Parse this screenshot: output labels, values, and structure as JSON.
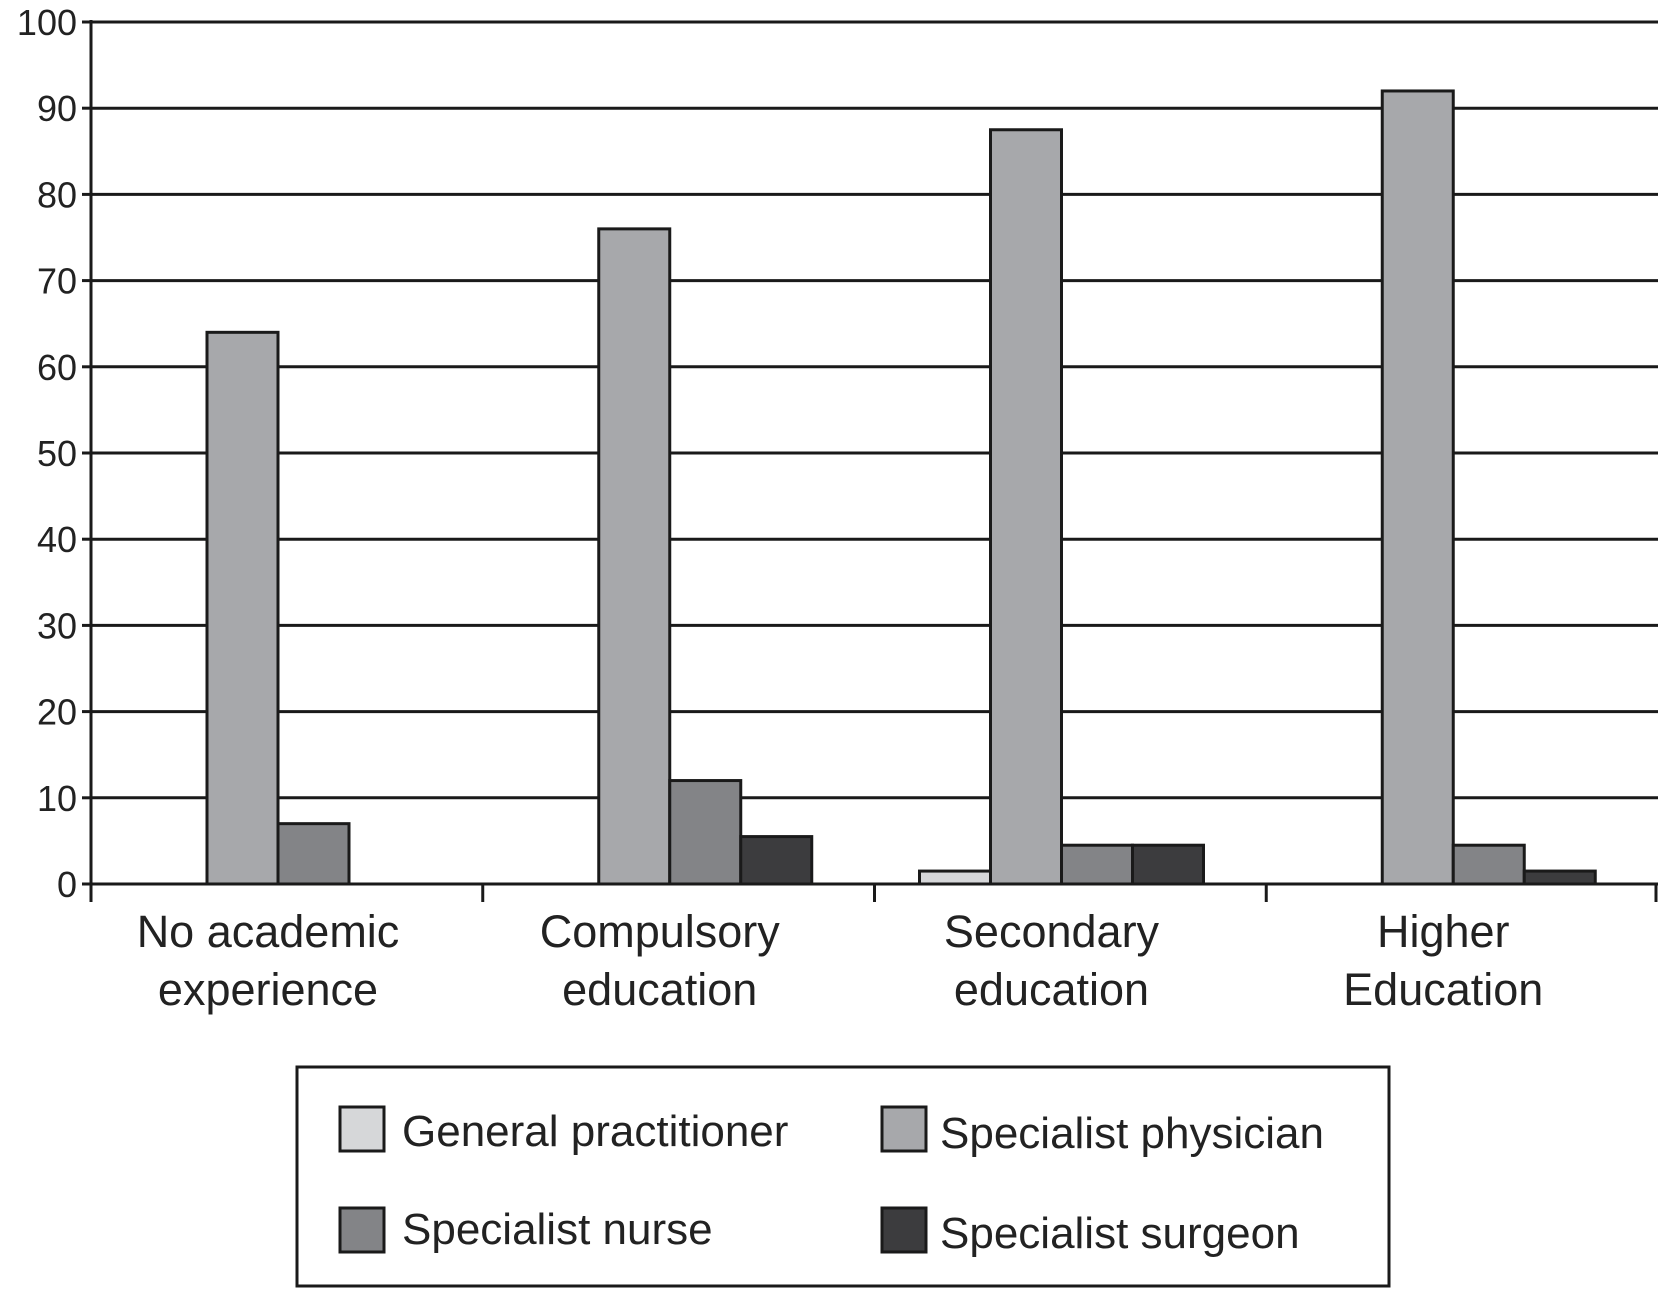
{
  "chart_data": {
    "type": "bar",
    "title": "",
    "xlabel": "",
    "ylabel": "",
    "ylim": [
      0,
      100
    ],
    "yticks": [
      "0",
      "10",
      "20",
      "30",
      "40",
      "50",
      "60",
      "70",
      "80",
      "90",
      "100"
    ],
    "grid": true,
    "legend_position": "bottom",
    "categories": [
      [
        "No academic",
        "experience"
      ],
      [
        "Compulsory",
        "education"
      ],
      [
        "Secondary",
        "education"
      ],
      [
        "Higher",
        "Education"
      ]
    ],
    "series": [
      {
        "name": "General practitioner",
        "color": "#d6d7d9",
        "values": [
          0,
          0,
          1.5,
          0
        ]
      },
      {
        "name": "Specialist physician",
        "color": "#a7a8ab",
        "values": [
          64,
          76,
          87.5,
          92
        ]
      },
      {
        "name": "Specialist nurse",
        "color": "#838487",
        "values": [
          7,
          12,
          4.5,
          4.5
        ]
      },
      {
        "name": "Specialist surgeon",
        "color": "#3c3c3e",
        "values": [
          0,
          5.5,
          4.5,
          1.5
        ]
      }
    ]
  }
}
